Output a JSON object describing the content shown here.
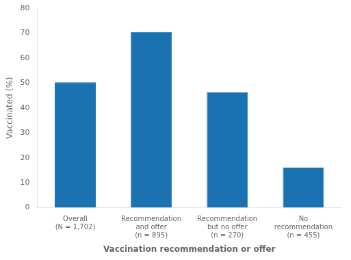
{
  "chart_data": {
    "type": "bar",
    "categories": [
      "Overall\n(N = 1,702)",
      "Recommendation\nand offer\n(n = 895)",
      "Recommendation\nbut no offer\n(n = 270)",
      "No\nrecommendation\n(n = 455)"
    ],
    "values": [
      50.3,
      70.5,
      46.3,
      16.1
    ],
    "color": "#1a72b0",
    "xlabel": "Vaccination recommendation or offer",
    "ylabel": "Vaccinated (%)",
    "ylim": [
      0,
      80
    ],
    "yticks": [
      0,
      10,
      20,
      30,
      40,
      50,
      60,
      70,
      80
    ],
    "grid": false
  }
}
